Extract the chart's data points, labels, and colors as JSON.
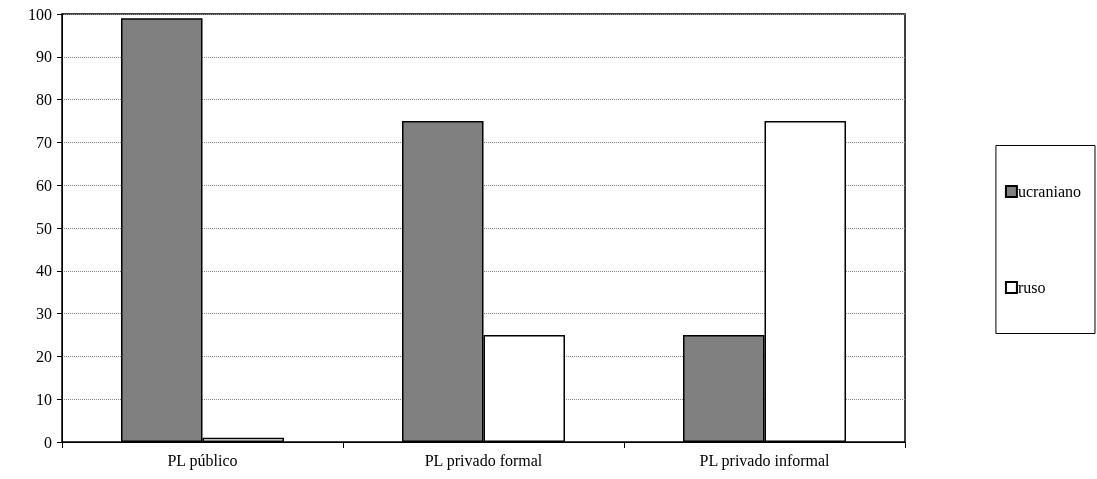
{
  "chart_data": {
    "type": "bar",
    "categories": [
      "PL público",
      "PL privado formal",
      "PL privado informal"
    ],
    "series": [
      {
        "name": "ucraniano",
        "color": "#808080",
        "values": [
          99,
          75,
          25
        ]
      },
      {
        "name": "ruso",
        "color": "#ffffff",
        "values": [
          1,
          25,
          75
        ]
      }
    ],
    "ylim": [
      0,
      100
    ],
    "yticks": [
      0,
      10,
      20,
      30,
      40,
      50,
      60,
      70,
      80,
      90,
      100
    ],
    "grid": "y",
    "legend": "right"
  }
}
